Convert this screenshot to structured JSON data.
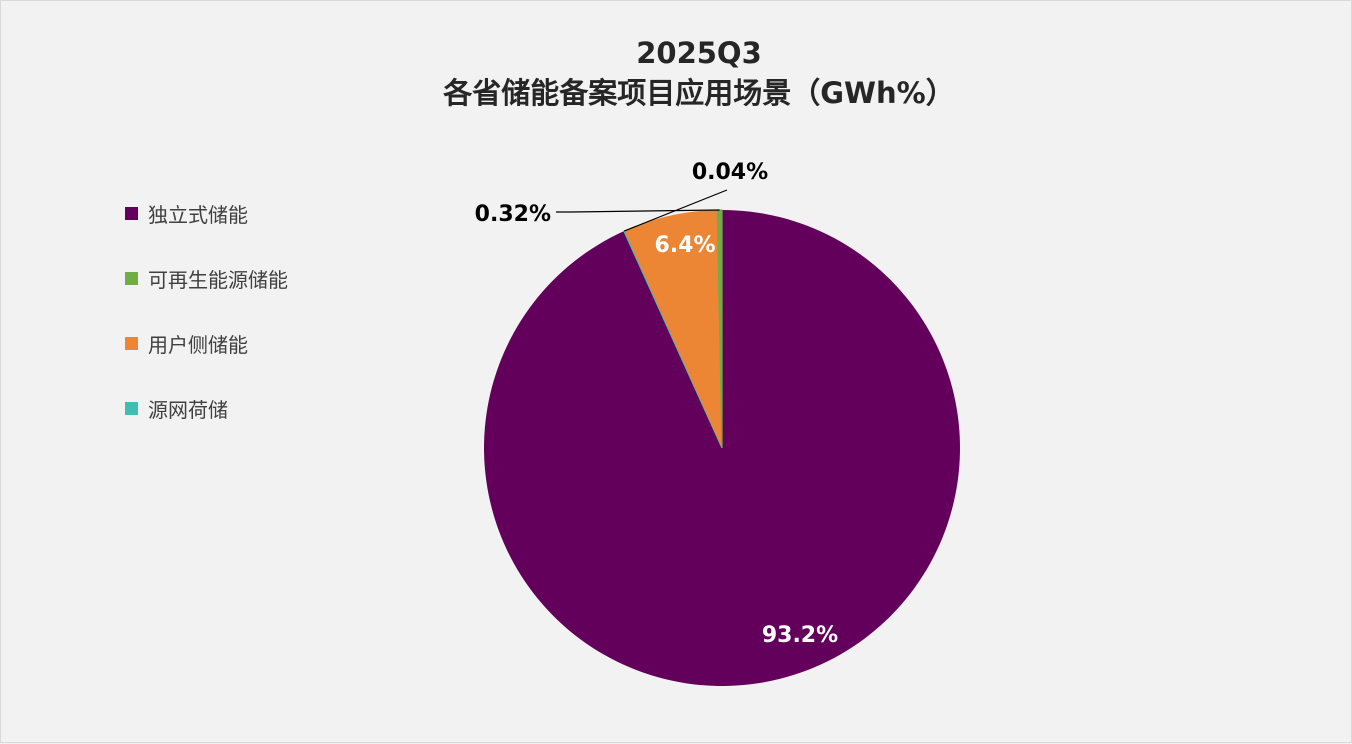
{
  "chart_data": {
    "type": "pie",
    "title": "2025Q3",
    "subtitle": "各省储能备案项目应用场景（GWh%）",
    "legend_position": "left",
    "slices": [
      {
        "name": "独立式储能",
        "value": 93.2,
        "label": "93.2%",
        "color": "#63005b"
      },
      {
        "name": "可再生能源储能",
        "value": 0.32,
        "label": "0.32%",
        "color": "#70ad47"
      },
      {
        "name": "用户侧储能",
        "value": 6.4,
        "label": "6.4%",
        "color": "#ed8634"
      },
      {
        "name": "源网荷储",
        "value": 0.04,
        "label": "0.04%",
        "color": "#3fbfb0"
      }
    ]
  }
}
